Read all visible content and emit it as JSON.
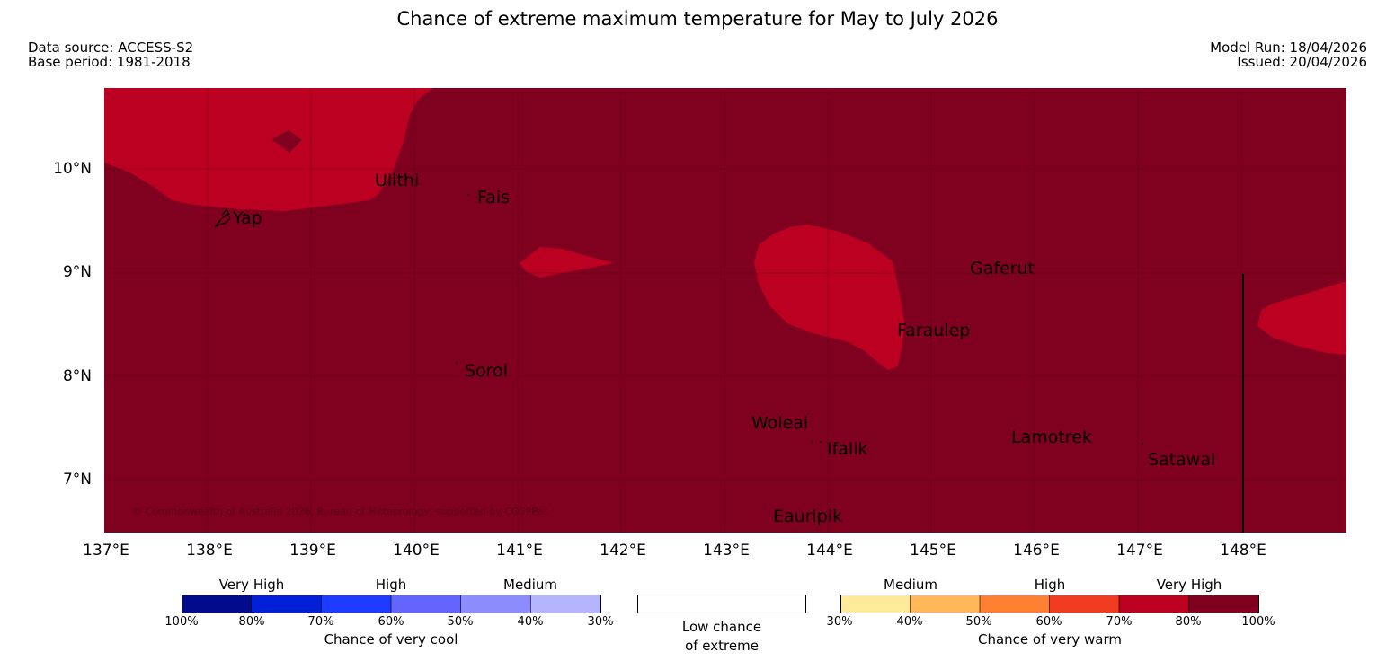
{
  "header": {
    "title": "Chance of extreme maximum temperature for May to July 2026",
    "data_source": "Data source: ACCESS-S2",
    "base_period": "Base period: 1981-2018",
    "model_run": "Model Run: 18/04/2026",
    "issued": "Issued: 20/04/2026"
  },
  "map": {
    "background_color": "#800020",
    "region_color": "#bc0022",
    "latitude_labels": [
      "10°N",
      "9°N",
      "8°N",
      "7°N"
    ],
    "longitude_labels": [
      "137°E",
      "138°E",
      "139°E",
      "140°E",
      "141°E",
      "142°E",
      "143°E",
      "144°E",
      "145°E",
      "146°E",
      "147°E",
      "148°E"
    ],
    "places": {
      "ulithi": "Ulithi",
      "fais": "Fais",
      "yap": "Yap",
      "gaferut": "Gaferut",
      "faraulep": "Faraulep",
      "sorol": "Sorol",
      "woleai": "Woleai",
      "ifalik": "Ifalik",
      "lamotrek": "Lamotrek",
      "satawal": "Satawal",
      "eauripik": "Eauripik"
    },
    "copyright": "© Commonwealth of Australia 2026, Bureau of Meteorology, supported by COSPPac"
  },
  "legend": {
    "cool": {
      "caption": "Chance of very cool",
      "categories": [
        "Very High",
        "High",
        "Medium"
      ],
      "ticks": [
        "100%",
        "80%",
        "70%",
        "60%",
        "50%",
        "40%",
        "30%"
      ],
      "colors": [
        "#000c8c",
        "#0020d8",
        "#1e3cff",
        "#6464ff",
        "#8c8cff",
        "#b4b4ff"
      ]
    },
    "neutral": {
      "line1": "Low chance",
      "line2": "of extreme",
      "color": "#ffffff"
    },
    "warm": {
      "caption": "Chance of very warm",
      "categories": [
        "Medium",
        "High",
        "Very High"
      ],
      "ticks": [
        "30%",
        "40%",
        "50%",
        "60%",
        "70%",
        "80%",
        "100%"
      ],
      "colors": [
        "#ffea9c",
        "#ffb85a",
        "#ff8032",
        "#f03c20",
        "#bc0022",
        "#800020"
      ]
    }
  }
}
